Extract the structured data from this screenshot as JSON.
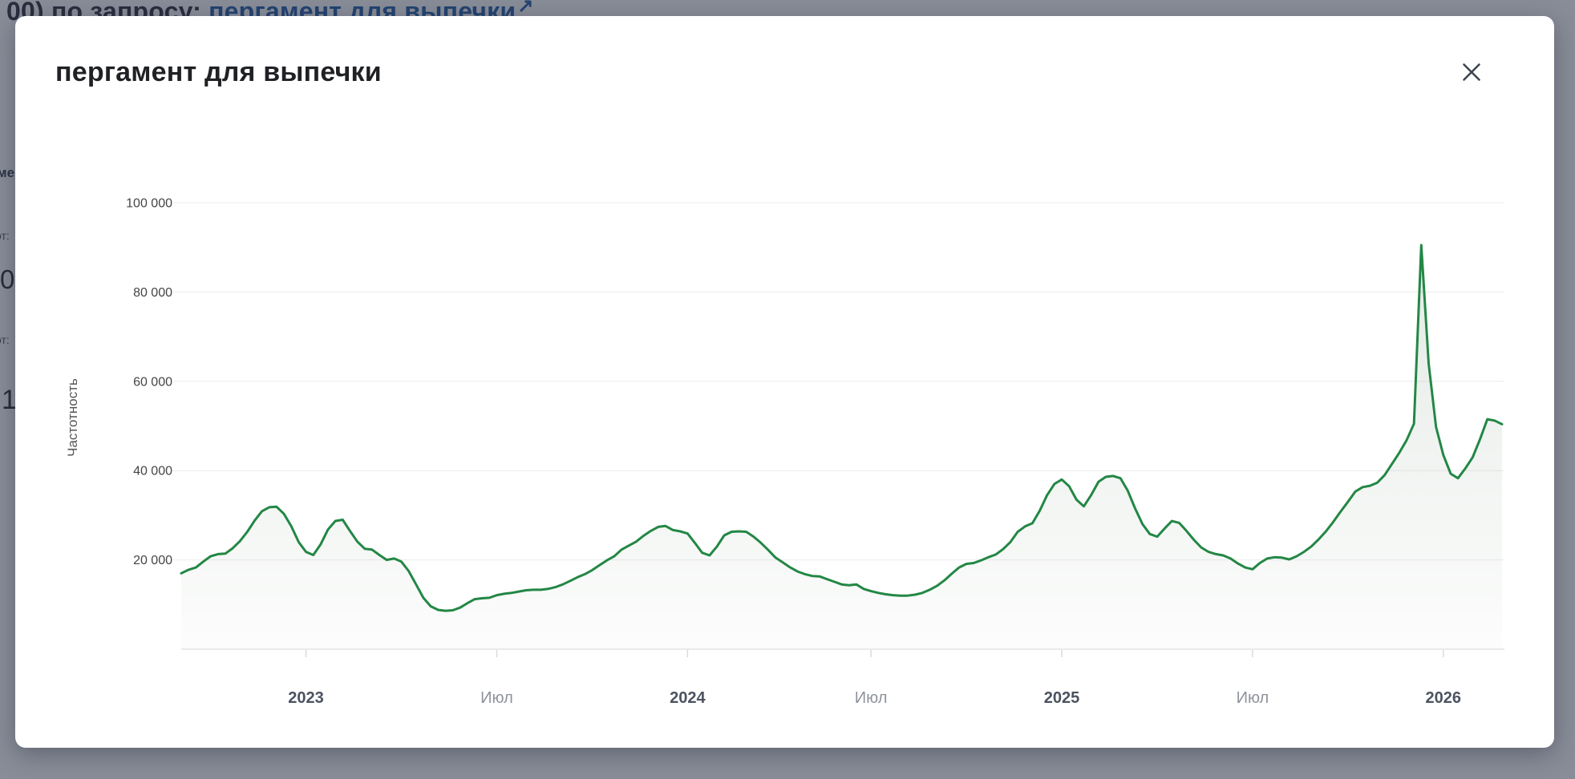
{
  "backdrop": {
    "top_text": {
      "prefix": "00) по запросу: ",
      "link_text": "пергамент для выпечки",
      "external_link_arrow": "↗"
    },
    "fragments": [
      {
        "text": "ме"
      },
      {
        "text": "от:"
      },
      {
        "text": "0"
      },
      {
        "text": "от:"
      },
      {
        "text": "1"
      }
    ]
  },
  "modal": {
    "title": "пергамент для выпечки",
    "close_icon": "close-x"
  },
  "chart_data": {
    "type": "area",
    "title": "",
    "xlabel": "",
    "ylabel": "Частотность",
    "ylim": [
      0,
      100000
    ],
    "grid": true,
    "legend": "none",
    "line_color": "#238745",
    "fill_color_top": "rgba(80,115,85,0.16)",
    "fill_color_bottom": "rgba(80,115,85,0.02)",
    "y_ticks": [
      {
        "value": 20000,
        "label": "20 000"
      },
      {
        "value": 40000,
        "label": "40 000"
      },
      {
        "value": 60000,
        "label": "60 000"
      },
      {
        "value": 80000,
        "label": "80 000"
      },
      {
        "value": 100000,
        "label": "100 000"
      }
    ],
    "x_ticks": [
      {
        "index": 17,
        "label": "2023",
        "emphasis": "year"
      },
      {
        "index": 43,
        "label": "Июл",
        "emphasis": "month"
      },
      {
        "index": 69,
        "label": "2024",
        "emphasis": "year"
      },
      {
        "index": 94,
        "label": "Июл",
        "emphasis": "month"
      },
      {
        "index": 120,
        "label": "2025",
        "emphasis": "year"
      },
      {
        "index": 146,
        "label": "Июл",
        "emphasis": "month"
      },
      {
        "index": 172,
        "label": "2026",
        "emphasis": "year"
      }
    ],
    "series_name": "Частотность",
    "values": [
      17000,
      17800,
      18300,
      19600,
      20800,
      21300,
      21400,
      22600,
      24200,
      26300,
      28800,
      30900,
      31800,
      31900,
      30300,
      27500,
      24000,
      21800,
      21100,
      23500,
      26800,
      28700,
      29000,
      26500,
      24100,
      22500,
      22300,
      21100,
      20000,
      20300,
      19600,
      17500,
      14500,
      11500,
      9600,
      8800,
      8600,
      8700,
      9300,
      10300,
      11200,
      11400,
      11500,
      12100,
      12400,
      12600,
      12900,
      13200,
      13300,
      13300,
      13500,
      13900,
      14500,
      15300,
      16100,
      16800,
      17700,
      18800,
      19900,
      20800,
      22300,
      23200,
      24100,
      25400,
      26500,
      27400,
      27600,
      26700,
      26400,
      25900,
      23800,
      21600,
      21000,
      23000,
      25500,
      26300,
      26400,
      26300,
      25200,
      23800,
      22200,
      20500,
      19400,
      18300,
      17400,
      16800,
      16400,
      16300,
      15700,
      15100,
      14500,
      14300,
      14500,
      13500,
      13000,
      12600,
      12300,
      12100,
      12000,
      12000,
      12200,
      12600,
      13300,
      14200,
      15400,
      16900,
      18300,
      19100,
      19300,
      19900,
      20600,
      21200,
      22400,
      24000,
      26300,
      27500,
      28200,
      31000,
      34500,
      37000,
      38000,
      36500,
      33500,
      32000,
      34500,
      37500,
      38600,
      38800,
      38300,
      35500,
      31500,
      28000,
      25800,
      25200,
      27000,
      28700,
      28300,
      26500,
      24500,
      22800,
      21800,
      21300,
      21000,
      20300,
      19200,
      18300,
      17900,
      19300,
      20300,
      20600,
      20500,
      20100,
      20800,
      21800,
      23000,
      24600,
      26400,
      28500,
      30800,
      33000,
      35300,
      36300,
      36600,
      37300,
      39000,
      41500,
      44000,
      46800,
      50500,
      90500,
      64000,
      49800,
      43500,
      39300,
      38300,
      40500,
      43000,
      47000,
      51500,
      51200,
      50400
    ]
  }
}
